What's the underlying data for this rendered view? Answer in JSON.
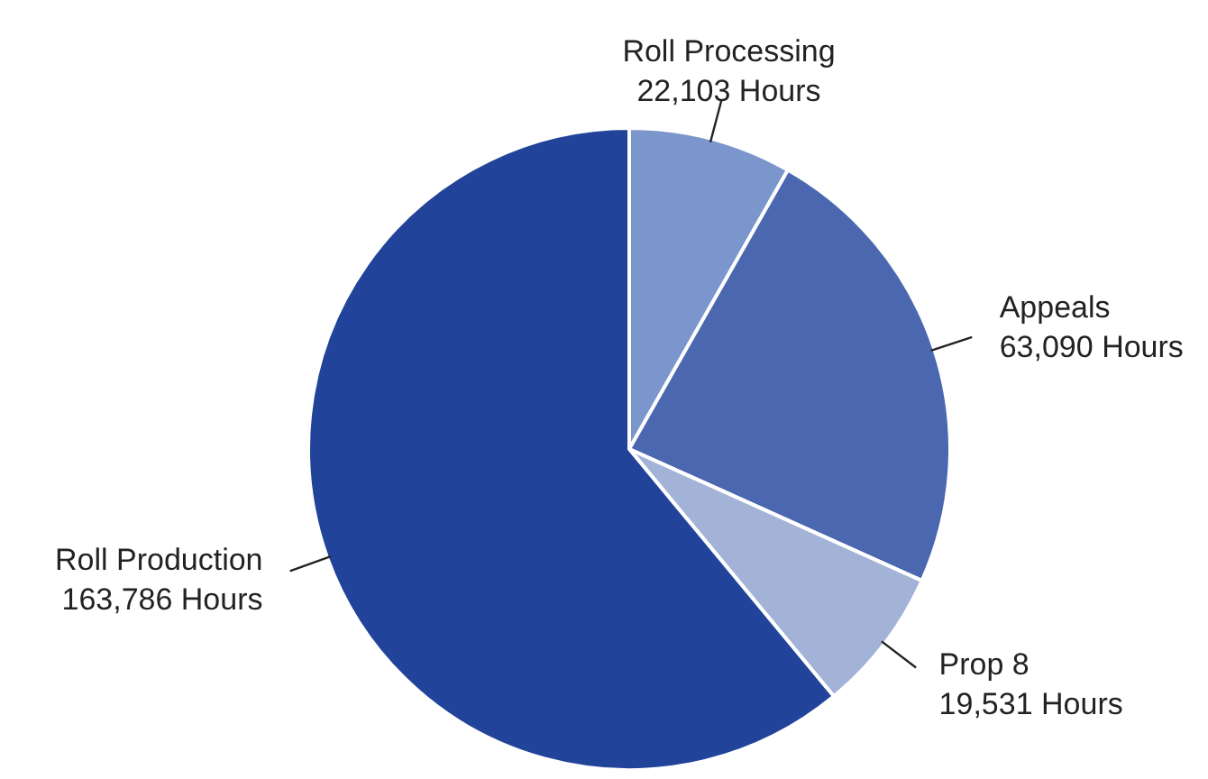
{
  "chart_data": {
    "type": "pie",
    "categories": [
      "Roll Processing",
      "Appeals",
      "Prop 8",
      "Roll Production"
    ],
    "values": [
      22103,
      63090,
      19531,
      163786
    ],
    "colors": [
      "#7b96cc",
      "#4a67b0",
      "#a3b3d8",
      "#21449a"
    ],
    "value_labels": [
      "22,103 Hours",
      "63,090 Hours",
      "19,531 Hours",
      "163,786 Hours"
    ]
  }
}
